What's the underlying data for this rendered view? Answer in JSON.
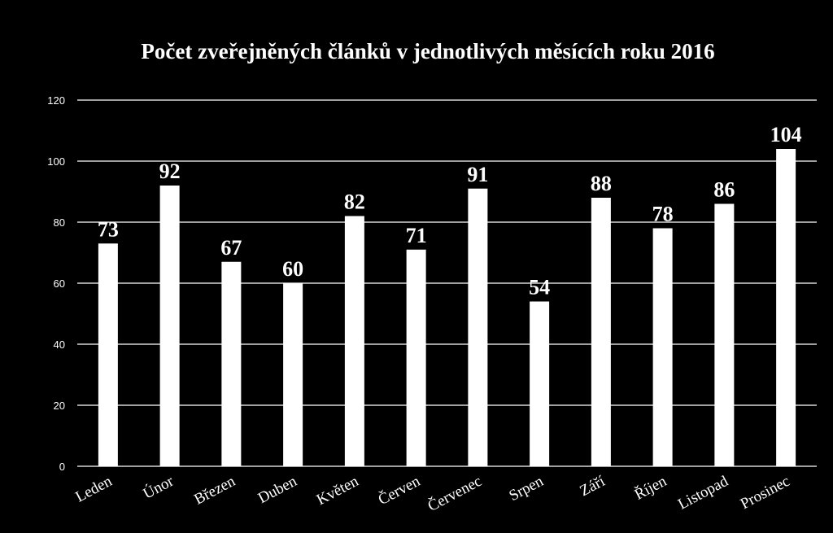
{
  "chart_data": {
    "type": "bar",
    "title": "Počet zveřejněných článků v jednotlivých měsících roku 2016",
    "xlabel": "",
    "ylabel": "",
    "categories": [
      "Leden",
      "Únor",
      "Březen",
      "Duben",
      "Květen",
      "Červen",
      "Červenec",
      "Srpen",
      "Září",
      "Říjen",
      "Listopad",
      "Prosinec"
    ],
    "values": [
      73,
      92,
      67,
      60,
      82,
      71,
      91,
      54,
      88,
      78,
      86,
      104
    ],
    "ylim": [
      0,
      120
    ],
    "yticks": [
      0,
      20,
      40,
      60,
      80,
      100,
      120
    ],
    "grid": true,
    "legend": "none",
    "colors": {
      "background": "#000000",
      "bar": "#ffffff",
      "grid": "#ffffff",
      "text": "#ffffff"
    }
  }
}
